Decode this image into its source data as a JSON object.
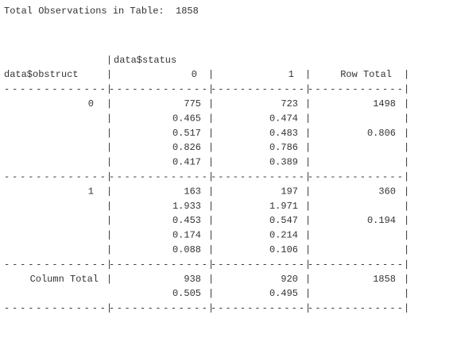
{
  "title": "Total Observations in Table:",
  "total_observations": 1858,
  "column_variable": "data$status",
  "row_variable": "data$obstruct",
  "column_headers": [
    "0",
    "1",
    "Row Total"
  ],
  "rows": [
    {
      "label": "0",
      "cells": [
        [
          775,
          0.465,
          0.517,
          0.826,
          0.417
        ],
        [
          723,
          0.474,
          0.483,
          0.786,
          0.389
        ]
      ],
      "row_total": {
        "n": 1498,
        "proportion": 0.806
      }
    },
    {
      "label": "1",
      "cells": [
        [
          163,
          1.933,
          0.453,
          0.174,
          0.088
        ],
        [
          197,
          1.971,
          0.547,
          0.214,
          0.106
        ]
      ],
      "row_total": {
        "n": 360,
        "proportion": 0.194
      }
    }
  ],
  "column_total": {
    "label": "Column Total",
    "cells": [
      [
        938,
        0.505
      ],
      [
        920,
        0.495
      ]
    ],
    "total": 1858
  }
}
